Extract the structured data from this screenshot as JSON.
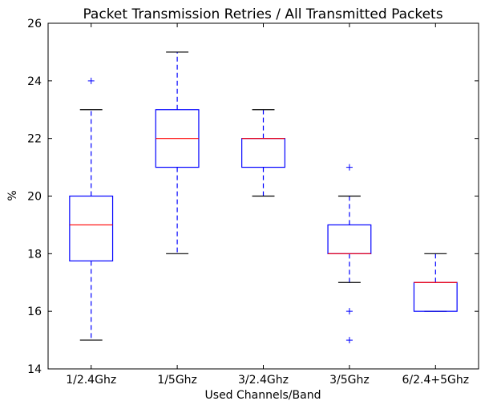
{
  "chart_data": {
    "type": "box",
    "title": "Packet Transmission Retries / All Transmitted Packets",
    "xlabel": "Used Channels/Band",
    "ylabel": "%",
    "ylim": [
      14,
      26
    ],
    "yticks": [
      14,
      16,
      18,
      20,
      22,
      24,
      26
    ],
    "grid": false,
    "categories": [
      "1/2.4Ghz",
      "1/5Ghz",
      "3/2.4Ghz",
      "3/5Ghz",
      "6/2.4+5Ghz"
    ],
    "boxes": [
      {
        "label": "1/2.4Ghz",
        "whisker_low": 15,
        "q1": 17.75,
        "median": 19,
        "q3": 20,
        "whisker_high": 23,
        "outliers": [
          24
        ]
      },
      {
        "label": "1/5Ghz",
        "whisker_low": 18,
        "q1": 21,
        "median": 22,
        "q3": 23,
        "whisker_high": 25,
        "outliers": []
      },
      {
        "label": "3/2.4Ghz",
        "whisker_low": 20,
        "q1": 21,
        "median": 22,
        "q3": 22,
        "whisker_high": 23,
        "outliers": []
      },
      {
        "label": "3/5Ghz",
        "whisker_low": 17,
        "q1": 18,
        "median": 18,
        "q3": 19,
        "whisker_high": 20,
        "outliers": [
          21,
          16,
          15
        ]
      },
      {
        "label": "6/2.4+5Ghz",
        "whisker_low": 16,
        "q1": 16,
        "median": 17,
        "q3": 17,
        "whisker_high": 18,
        "outliers": []
      }
    ],
    "colors": {
      "box": "#0000ff",
      "median": "#ff0000",
      "whisker_cap": "#000000",
      "outlier": "#0000ff"
    }
  }
}
